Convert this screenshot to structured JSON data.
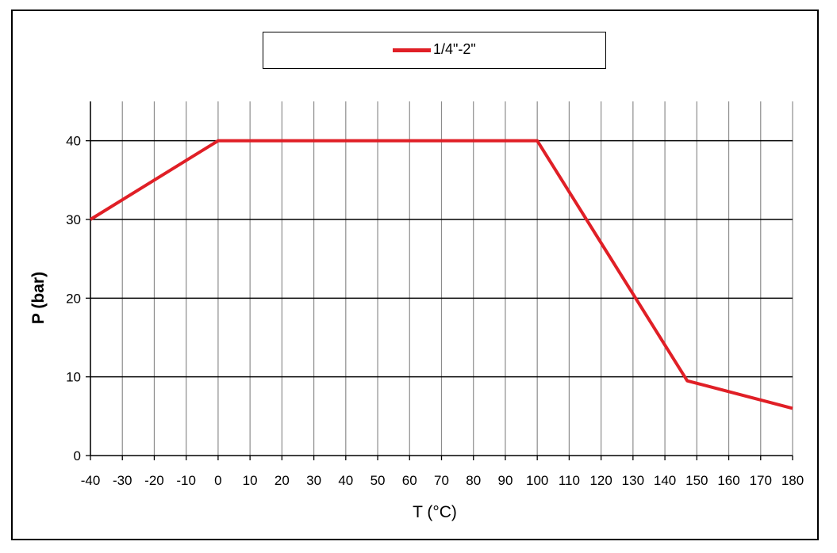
{
  "chart_data": {
    "type": "line",
    "title": "",
    "xlabel": "T (°C)",
    "ylabel": "P (bar)",
    "xlim": [
      -40,
      180
    ],
    "ylim": [
      0,
      45
    ],
    "x_ticks": [
      -40,
      -30,
      -20,
      -10,
      0,
      10,
      20,
      30,
      40,
      50,
      60,
      70,
      80,
      90,
      100,
      110,
      120,
      130,
      140,
      150,
      160,
      170,
      180
    ],
    "y_ticks": [
      0,
      10,
      20,
      30,
      40
    ],
    "grid": true,
    "legend_position": "top-center",
    "series": [
      {
        "name": "1/4\"-2\"",
        "color": "#e01f26",
        "x": [
          -40,
          0,
          100,
          147,
          180
        ],
        "y": [
          30,
          40,
          40,
          9.5,
          6
        ]
      }
    ]
  }
}
